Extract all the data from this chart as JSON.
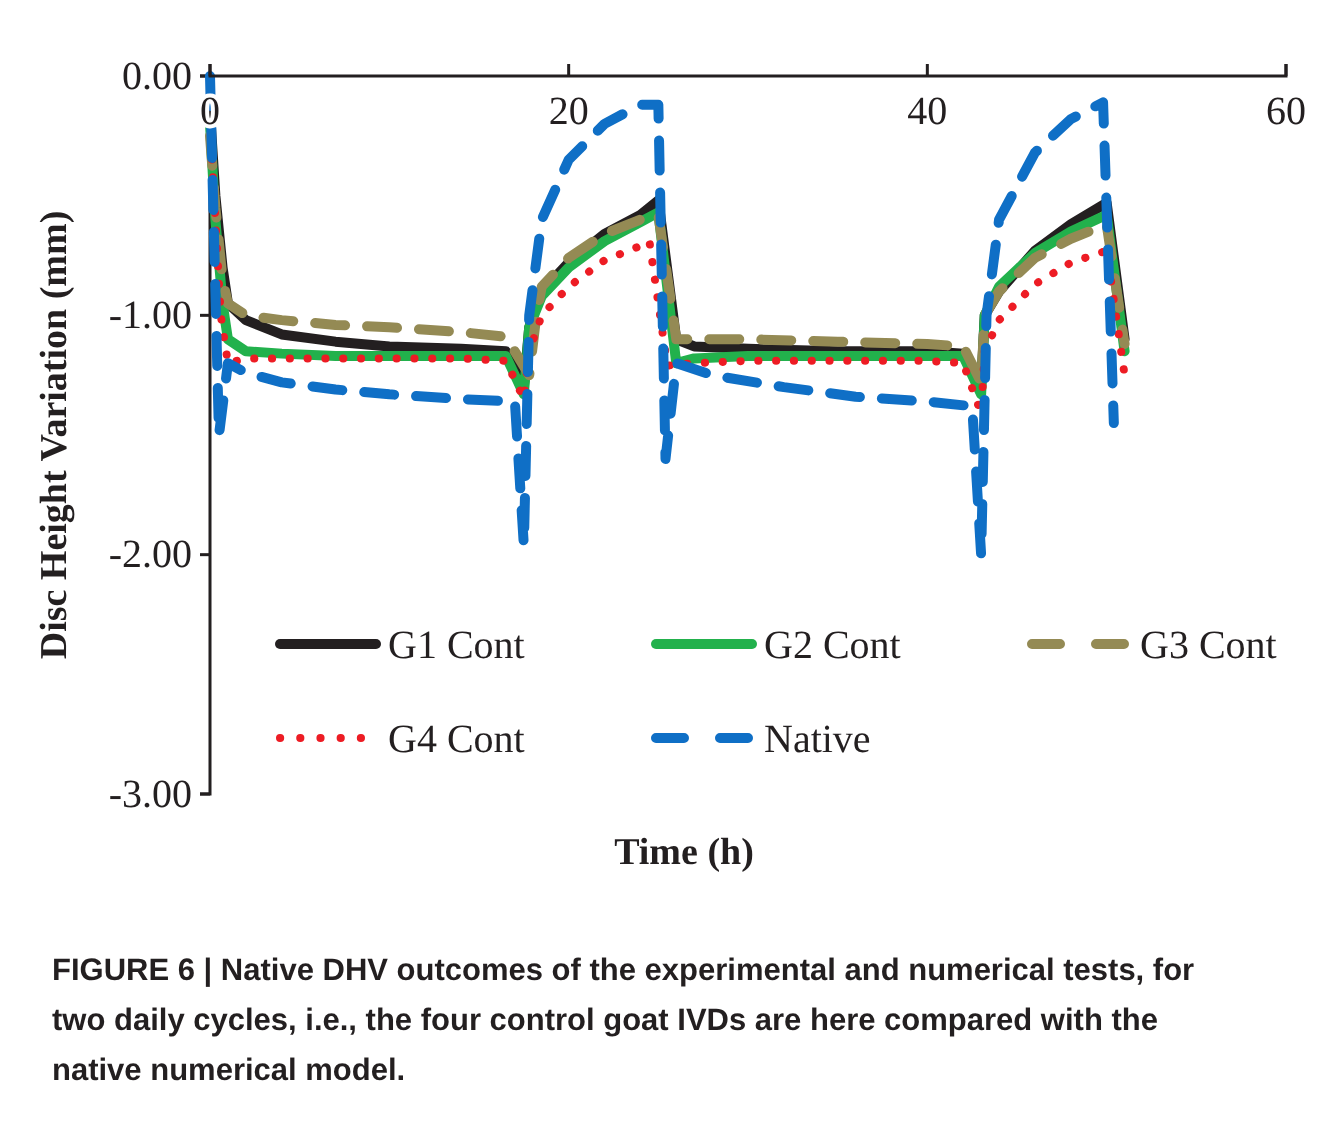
{
  "chart_data": {
    "type": "line",
    "xlabel": "Time (h)",
    "ylabel": "Disc Height Variation (mm)",
    "xlim": [
      0,
      60
    ],
    "ylim": [
      -3,
      0
    ],
    "xticks": [
      0,
      20,
      40,
      60
    ],
    "yticks": [
      {
        "value": 0,
        "label": "0.00"
      },
      {
        "value": -1,
        "label": "-1.00"
      },
      {
        "value": -2,
        "label": "-2.00"
      },
      {
        "value": -3,
        "label": "-3.00"
      }
    ],
    "grid": false,
    "legend": "bottom",
    "marker": "none",
    "annotations": [
      "FIGURE 6 | Native DHV outcomes of the experimental and numerical tests, for two daily cycles, i.e., the four control goat IVDs are here compared with the native numerical model."
    ],
    "series": [
      {
        "name": "G1 Cont",
        "color": "#231f20",
        "line_style": "solid",
        "x": [
          0,
          0.3,
          0.7,
          1,
          2,
          4,
          7,
          10,
          14,
          16.5,
          17.5,
          17.8,
          18.5,
          20,
          22,
          24,
          25,
          26,
          27,
          30,
          35,
          40,
          42,
          43,
          43.2,
          44,
          46,
          48,
          50,
          51
        ],
        "values": [
          -0.15,
          -0.5,
          -0.8,
          -0.95,
          -1.02,
          -1.08,
          -1.11,
          -1.13,
          -1.14,
          -1.15,
          -1.3,
          -1.05,
          -0.9,
          -0.78,
          -0.66,
          -0.58,
          -0.52,
          -1.1,
          -1.13,
          -1.14,
          -1.15,
          -1.15,
          -1.16,
          -1.3,
          -1.0,
          -0.9,
          -0.73,
          -0.62,
          -0.53,
          -1.1
        ]
      },
      {
        "name": "G2 Cont",
        "color": "#22b14c",
        "line_style": "solid",
        "x": [
          0,
          0.3,
          0.7,
          1,
          2,
          4,
          7,
          10,
          14,
          16.5,
          17.5,
          17.8,
          18.5,
          20,
          22,
          24,
          25,
          26,
          27,
          30,
          35,
          40,
          42,
          43,
          43.2,
          44,
          46,
          48,
          50,
          51
        ],
        "values": [
          -0.2,
          -0.6,
          -0.95,
          -1.1,
          -1.15,
          -1.16,
          -1.17,
          -1.17,
          -1.17,
          -1.17,
          -1.33,
          -1.05,
          -0.92,
          -0.8,
          -0.69,
          -0.61,
          -0.57,
          -1.2,
          -1.18,
          -1.17,
          -1.17,
          -1.17,
          -1.17,
          -1.33,
          -1.0,
          -0.88,
          -0.74,
          -0.65,
          -0.58,
          -1.15
        ]
      },
      {
        "name": "G3 Cont",
        "color": "#948a54",
        "line_style": "dashed",
        "x": [
          0,
          0.3,
          0.7,
          1,
          2,
          4,
          7,
          10,
          14,
          16.5,
          17.8,
          18.2,
          18.5,
          20,
          22,
          24,
          25,
          26,
          27,
          30,
          35,
          40,
          42,
          43,
          43.2,
          44,
          46,
          48,
          50,
          51
        ],
        "values": [
          -0.25,
          -0.55,
          -0.85,
          -0.95,
          -1.0,
          -1.02,
          -1.04,
          -1.05,
          -1.07,
          -1.09,
          -1.25,
          -1.0,
          -0.88,
          -0.76,
          -0.66,
          -0.6,
          -0.58,
          -1.1,
          -1.1,
          -1.1,
          -1.11,
          -1.12,
          -1.13,
          -1.28,
          -1.0,
          -0.9,
          -0.76,
          -0.68,
          -0.62,
          -1.12
        ]
      },
      {
        "name": "G4 Cont",
        "color": "#ed1c24",
        "line_style": "dotted",
        "x": [
          0,
          0.3,
          0.6,
          1,
          2,
          4,
          7,
          10,
          14,
          16.5,
          17.5,
          17.8,
          18.5,
          20,
          22,
          24,
          24.5,
          25.5,
          27,
          30,
          35,
          40,
          42,
          43,
          43.2,
          44,
          46,
          48,
          50,
          51
        ],
        "values": [
          -0.2,
          -0.6,
          -1.0,
          -1.2,
          -1.18,
          -1.18,
          -1.18,
          -1.18,
          -1.18,
          -1.19,
          -1.35,
          -1.15,
          -1.0,
          -0.88,
          -0.77,
          -0.71,
          -0.69,
          -1.21,
          -1.2,
          -1.19,
          -1.19,
          -1.19,
          -1.2,
          -1.41,
          -1.15,
          -1.02,
          -0.87,
          -0.78,
          -0.73,
          -1.25
        ]
      },
      {
        "name": "Native",
        "color": "#0f6fc6",
        "line_style": "dashed",
        "x": [
          0,
          0.5,
          1,
          2,
          4,
          7,
          10,
          14,
          17,
          17.5,
          17.8,
          18.5,
          20,
          22,
          24,
          25,
          25.4,
          26,
          28,
          32,
          36,
          40,
          42.5,
          43,
          43.3,
          44,
          46,
          48,
          49.8,
          50.4
        ],
        "values": [
          0,
          -1.5,
          -1.2,
          -1.24,
          -1.28,
          -1.31,
          -1.33,
          -1.35,
          -1.36,
          -1.96,
          -1.0,
          -0.6,
          -0.35,
          -0.2,
          -0.12,
          -0.12,
          -1.6,
          -1.2,
          -1.25,
          -1.3,
          -1.34,
          -1.36,
          -1.38,
          -2.0,
          -1.0,
          -0.6,
          -0.32,
          -0.18,
          -0.11,
          -1.45
        ]
      }
    ]
  }
}
